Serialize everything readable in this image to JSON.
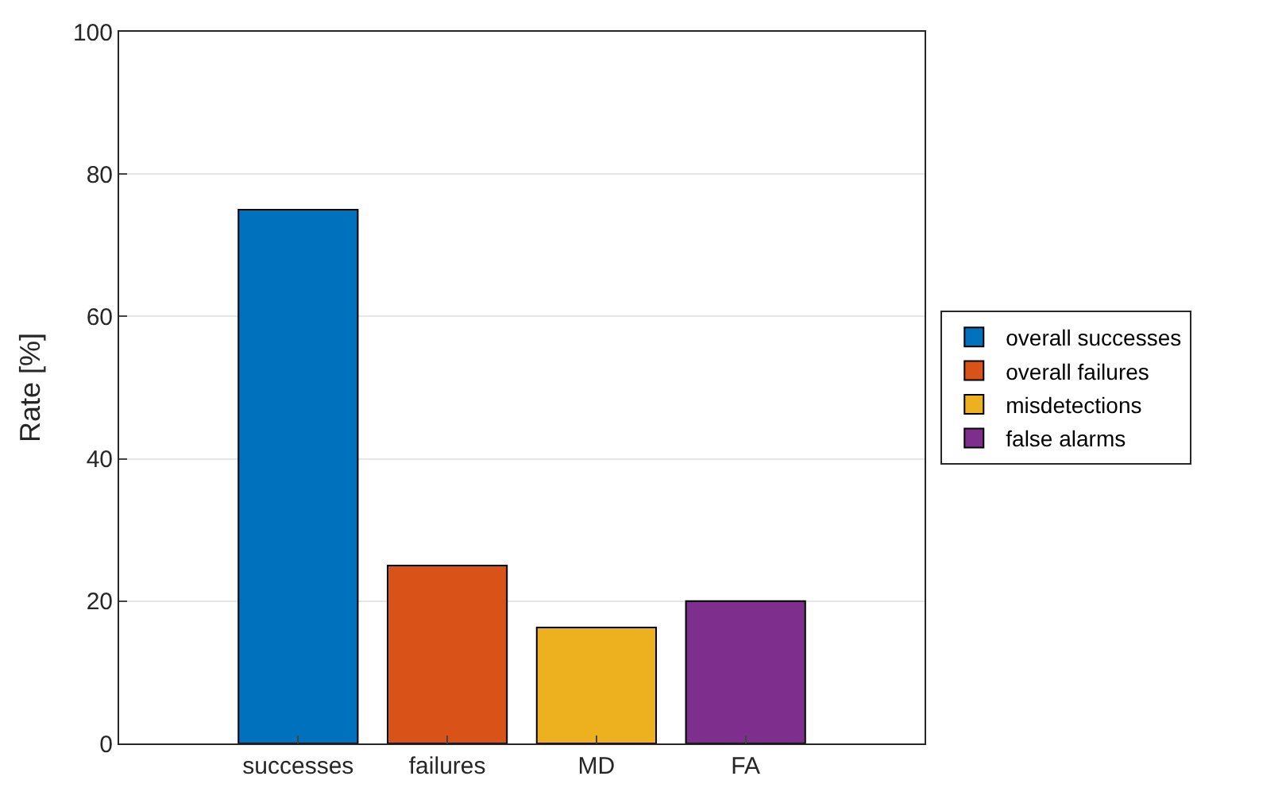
{
  "chart_data": {
    "type": "bar",
    "ylabel": "Rate [%]",
    "categories": [
      "successes",
      "failures",
      "MD",
      "FA"
    ],
    "series": [
      {
        "name": "overall successes",
        "color": "#0072bd",
        "values": [
          75,
          null,
          null,
          null
        ]
      },
      {
        "name": "overall failures",
        "color": "#d95319",
        "values": [
          null,
          25,
          null,
          null
        ]
      },
      {
        "name": "misdetections",
        "color": "#edb120",
        "values": [
          null,
          null,
          16.3,
          null
        ]
      },
      {
        "name": "false alarms",
        "color": "#7e2f8e",
        "values": [
          null,
          null,
          null,
          20
        ]
      }
    ],
    "ylim": [
      0,
      100
    ],
    "yticks": [
      0,
      20,
      40,
      60,
      80,
      100
    ],
    "grid": "y",
    "legend": "right"
  }
}
